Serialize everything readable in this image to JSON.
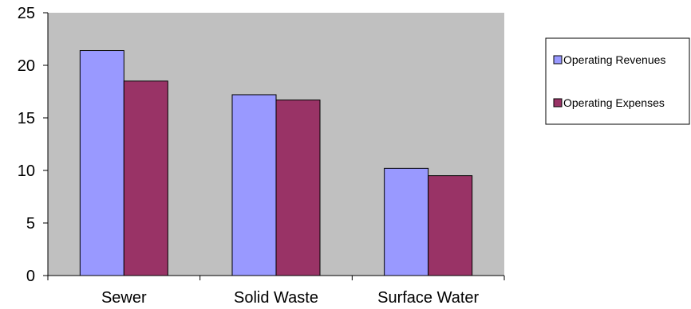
{
  "chart_data": {
    "type": "bar",
    "categories": [
      "Sewer",
      "Solid Waste",
      "Surface Water"
    ],
    "series": [
      {
        "name": "Operating Revenues",
        "values": [
          21.4,
          17.2,
          10.2
        ],
        "color": "#9999ff"
      },
      {
        "name": "Operating Expenses",
        "values": [
          18.5,
          16.7,
          9.5
        ],
        "color": "#993366"
      }
    ],
    "ylim": [
      0,
      25
    ],
    "yticks": [
      0,
      5,
      10,
      15,
      20,
      25
    ],
    "grid": false,
    "plot_background": "#c0c0c0",
    "legend_position": "right"
  }
}
